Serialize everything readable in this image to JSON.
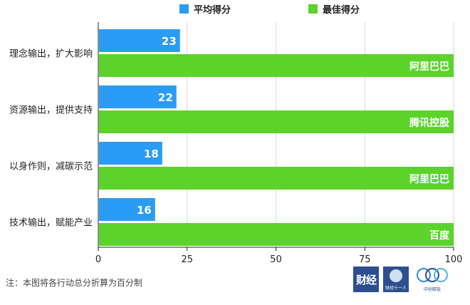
{
  "legend": {
    "avg_label": "平均得分",
    "best_label": "最佳得分"
  },
  "colors": {
    "avg": "#2b9cf5",
    "best": "#5cd32b",
    "grid": "#d9d9d9",
    "axis": "#222222"
  },
  "chart_data": {
    "type": "bar",
    "orientation": "horizontal",
    "categories": [
      "理念输出，扩大影响",
      "资源输出，提供支持",
      "以身作则，减碳示范",
      "技术输出，赋能产业"
    ],
    "series": [
      {
        "name": "平均得分",
        "values": [
          23,
          22,
          18,
          16
        ],
        "labels": [
          "23",
          "22",
          "18",
          "16"
        ]
      },
      {
        "name": "最佳得分",
        "values": [
          100,
          100,
          100,
          100
        ],
        "labels": [
          "阿里巴巴",
          "腾讯控股",
          "阿里巴巴",
          "百度"
        ]
      }
    ],
    "xlim": [
      0,
      100
    ],
    "xticks": [
      "0",
      "25",
      "50",
      "75",
      "100"
    ],
    "grid": true,
    "legend_position": "top"
  },
  "footnote": "注：本图将各行动总分折算为百分制",
  "logos": {
    "logo1": "财经",
    "logo2": "财经十一人",
    "logo3": "中创碳投"
  }
}
